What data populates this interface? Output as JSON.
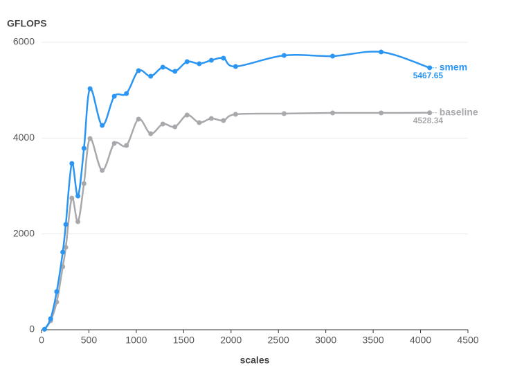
{
  "chart_data": {
    "type": "line",
    "y_label": "GFLOPS",
    "x_label": "scales",
    "x": [
      32,
      96,
      160,
      224,
      256,
      320,
      384,
      448,
      512,
      640,
      768,
      896,
      1024,
      1152,
      1280,
      1408,
      1536,
      1664,
      1792,
      1920,
      2048,
      2560,
      3072,
      3584,
      4096
    ],
    "series": [
      {
        "name": "smem",
        "color": "#2b95f2",
        "values": [
          10,
          230,
          795,
          1619,
          2197,
          3470,
          2790,
          3788,
          5031,
          4265,
          4872,
          4930,
          5407,
          5291,
          5479,
          5393,
          5595,
          5551,
          5624,
          5667,
          5494,
          5725,
          5711,
          5797,
          5467.65
        ]
      },
      {
        "name": "baseline",
        "color": "#a9a9ad",
        "values": [
          10,
          188,
          578,
          1316,
          1720,
          2747,
          2255,
          3050,
          3990,
          3325,
          3889,
          3846,
          4395,
          4091,
          4294,
          4236,
          4482,
          4323,
          4409,
          4366,
          4496,
          4511,
          4525,
          4525,
          4528.34
        ]
      }
    ],
    "xlim": [
      0,
      4500
    ],
    "xticks": [
      0,
      500,
      1000,
      1500,
      2000,
      2500,
      3000,
      3500,
      4000,
      4500
    ],
    "ylim": [
      0,
      6000
    ],
    "yticks": [
      0,
      2000,
      4000,
      6000
    ],
    "grid": true
  }
}
